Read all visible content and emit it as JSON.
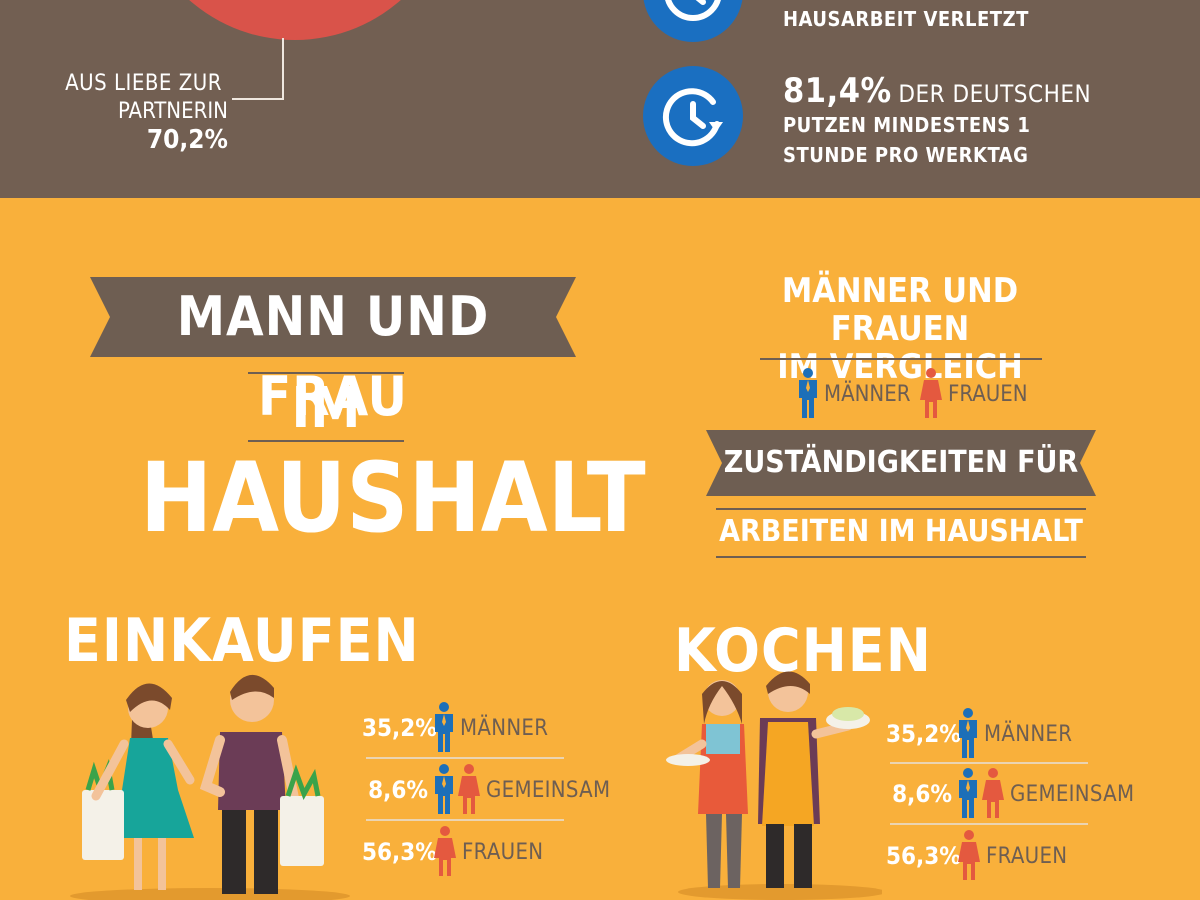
{
  "top": {
    "pie_caption_line1": "AUS LIEBE ZUR",
    "pie_caption_line2": "PARTNERIN",
    "pie_caption_value": "70,2%",
    "fact1_line": "HAUSARBEIT VERLETZT",
    "fact2_value": "81,4%",
    "fact2_line1_rest": "DER DEUTSCHEN",
    "fact2_line2": "PUTZEN MINDESTENS 1",
    "fact2_line3": "STUNDE PRO WERKTAG"
  },
  "headline": {
    "line1": "MANN UND FRAU",
    "line2": "IM",
    "line3": "HAUSHALT"
  },
  "comparison": {
    "title_line1": "MÄNNER UND FRAUEN",
    "title_line2": "IM VERGLEICH",
    "legend_men": "MÄNNER",
    "legend_women": "FRAUEN",
    "ribbon": "ZUSTÄNDIGKEITEN FÜR",
    "subtitle": "ARBEITEN IM HAUSHALT"
  },
  "sections": [
    {
      "title": "EINKAUFEN",
      "stats": [
        {
          "value": "35,2%",
          "label": "MÄNNER"
        },
        {
          "value": "8,6%",
          "label": "GEMEINSAM"
        },
        {
          "value": "56,3%",
          "label": "FRAUEN"
        }
      ]
    },
    {
      "title": "KOCHEN",
      "stats": [
        {
          "value": "35,2%",
          "label": "MÄNNER"
        },
        {
          "value": "8,6%",
          "label": "GEMEINSAM"
        },
        {
          "value": "56,3%",
          "label": "FRAUEN"
        }
      ]
    }
  ],
  "colors": {
    "top_bg": "#725f52",
    "bottom_bg": "#f9b03b",
    "ribbon": "#6e5e52",
    "icon_blue": "#1a6fc1",
    "pie_red": "#d9534a",
    "man_blue": "#1d6fb8",
    "woman_red": "#e4593f"
  }
}
